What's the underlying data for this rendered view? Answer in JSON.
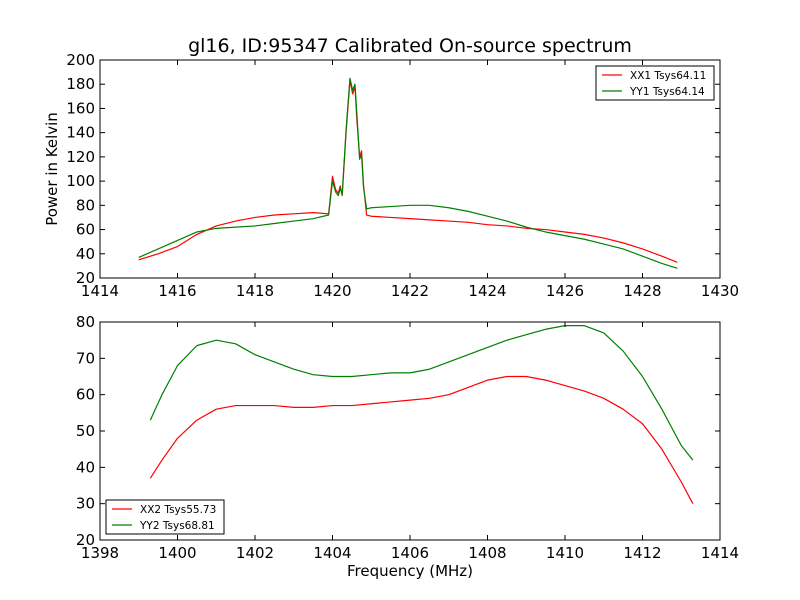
{
  "chart_data": [
    {
      "type": "line",
      "title": "gl16, ID:95347 Calibrated On-source spectrum",
      "xlabel": "",
      "ylabel": "Power in Kelvin",
      "xlim": [
        1414,
        1430
      ],
      "ylim": [
        20,
        200
      ],
      "xticks": [
        1414,
        1416,
        1418,
        1420,
        1422,
        1424,
        1426,
        1428,
        1430
      ],
      "yticks": [
        20,
        40,
        60,
        80,
        100,
        120,
        140,
        160,
        180,
        200
      ],
      "legend_position": "top-right",
      "series": [
        {
          "name": "XX1 Tsys64.11",
          "color": "#ff0000",
          "points": [
            [
              1415.0,
              35
            ],
            [
              1415.5,
              40
            ],
            [
              1416.0,
              46
            ],
            [
              1416.5,
              56
            ],
            [
              1417.0,
              63
            ],
            [
              1417.5,
              67
            ],
            [
              1418.0,
              70
            ],
            [
              1418.5,
              72
            ],
            [
              1419.0,
              73
            ],
            [
              1419.5,
              74
            ],
            [
              1419.9,
              73
            ],
            [
              1420.0,
              104
            ],
            [
              1420.08,
              93
            ],
            [
              1420.15,
              90
            ],
            [
              1420.2,
              96
            ],
            [
              1420.25,
              88
            ],
            [
              1420.35,
              140
            ],
            [
              1420.45,
              183
            ],
            [
              1420.52,
              172
            ],
            [
              1420.58,
              178
            ],
            [
              1420.63,
              150
            ],
            [
              1420.7,
              120
            ],
            [
              1420.75,
              125
            ],
            [
              1420.8,
              97
            ],
            [
              1420.88,
              72
            ],
            [
              1421.0,
              71
            ],
            [
              1421.5,
              70
            ],
            [
              1422.0,
              69
            ],
            [
              1422.5,
              68
            ],
            [
              1423.0,
              67
            ],
            [
              1423.5,
              66
            ],
            [
              1424.0,
              64
            ],
            [
              1424.5,
              63
            ],
            [
              1425.0,
              61
            ],
            [
              1425.5,
              60
            ],
            [
              1426.0,
              58
            ],
            [
              1426.5,
              56
            ],
            [
              1427.0,
              53
            ],
            [
              1427.5,
              49
            ],
            [
              1428.0,
              44
            ],
            [
              1428.5,
              38
            ],
            [
              1428.9,
              33
            ]
          ]
        },
        {
          "name": "YY1 Tsys64.14",
          "color": "#008000",
          "points": [
            [
              1415.0,
              37
            ],
            [
              1415.5,
              44
            ],
            [
              1416.0,
              51
            ],
            [
              1416.5,
              58
            ],
            [
              1417.0,
              61
            ],
            [
              1417.5,
              62
            ],
            [
              1418.0,
              63
            ],
            [
              1418.5,
              65
            ],
            [
              1419.0,
              67
            ],
            [
              1419.5,
              69
            ],
            [
              1419.9,
              72
            ],
            [
              1420.0,
              100
            ],
            [
              1420.08,
              91
            ],
            [
              1420.15,
              88
            ],
            [
              1420.2,
              94
            ],
            [
              1420.25,
              89
            ],
            [
              1420.35,
              142
            ],
            [
              1420.45,
              185
            ],
            [
              1420.52,
              175
            ],
            [
              1420.58,
              180
            ],
            [
              1420.63,
              155
            ],
            [
              1420.7,
              118
            ],
            [
              1420.75,
              122
            ],
            [
              1420.8,
              95
            ],
            [
              1420.88,
              77
            ],
            [
              1421.0,
              78
            ],
            [
              1421.5,
              79
            ],
            [
              1422.0,
              80
            ],
            [
              1422.5,
              80
            ],
            [
              1423.0,
              78
            ],
            [
              1423.5,
              75
            ],
            [
              1424.0,
              71
            ],
            [
              1424.5,
              67
            ],
            [
              1425.0,
              62
            ],
            [
              1425.5,
              58
            ],
            [
              1426.0,
              55
            ],
            [
              1426.5,
              52
            ],
            [
              1427.0,
              48
            ],
            [
              1427.5,
              44
            ],
            [
              1428.0,
              38
            ],
            [
              1428.5,
              32
            ],
            [
              1428.9,
              28
            ]
          ]
        }
      ]
    },
    {
      "type": "line",
      "title": "",
      "xlabel": "Frequency (MHz)",
      "ylabel": "",
      "xlim": [
        1398,
        1414
      ],
      "ylim": [
        20,
        80
      ],
      "xticks": [
        1398,
        1400,
        1402,
        1404,
        1406,
        1408,
        1410,
        1412,
        1414
      ],
      "yticks": [
        20,
        30,
        40,
        50,
        60,
        70,
        80
      ],
      "legend_position": "lower-left",
      "series": [
        {
          "name": "XX2 Tsys55.73",
          "color": "#ff0000",
          "points": [
            [
              1399.3,
              37
            ],
            [
              1399.6,
              42
            ],
            [
              1400.0,
              48
            ],
            [
              1400.5,
              53
            ],
            [
              1401.0,
              56
            ],
            [
              1401.5,
              57
            ],
            [
              1402.0,
              57
            ],
            [
              1402.5,
              57
            ],
            [
              1403.0,
              56.5
            ],
            [
              1403.5,
              56.5
            ],
            [
              1404.0,
              57
            ],
            [
              1404.5,
              57
            ],
            [
              1405.0,
              57.5
            ],
            [
              1405.5,
              58
            ],
            [
              1406.0,
              58.5
            ],
            [
              1406.5,
              59
            ],
            [
              1407.0,
              60
            ],
            [
              1407.5,
              62
            ],
            [
              1408.0,
              64
            ],
            [
              1408.5,
              65
            ],
            [
              1409.0,
              65
            ],
            [
              1409.5,
              64
            ],
            [
              1410.0,
              62.5
            ],
            [
              1410.5,
              61
            ],
            [
              1411.0,
              59
            ],
            [
              1411.5,
              56
            ],
            [
              1412.0,
              52
            ],
            [
              1412.5,
              45
            ],
            [
              1413.0,
              36
            ],
            [
              1413.3,
              30
            ]
          ]
        },
        {
          "name": "YY2 Tsys68.81",
          "color": "#008000",
          "points": [
            [
              1399.3,
              53
            ],
            [
              1399.6,
              60
            ],
            [
              1400.0,
              68
            ],
            [
              1400.5,
              73.5
            ],
            [
              1401.0,
              75
            ],
            [
              1401.5,
              74
            ],
            [
              1402.0,
              71
            ],
            [
              1402.5,
              69
            ],
            [
              1403.0,
              67
            ],
            [
              1403.5,
              65.5
            ],
            [
              1404.0,
              65
            ],
            [
              1404.5,
              65
            ],
            [
              1405.0,
              65.5
            ],
            [
              1405.5,
              66
            ],
            [
              1406.0,
              66
            ],
            [
              1406.5,
              67
            ],
            [
              1407.0,
              69
            ],
            [
              1407.5,
              71
            ],
            [
              1408.0,
              73
            ],
            [
              1408.5,
              75
            ],
            [
              1409.0,
              76.5
            ],
            [
              1409.5,
              78
            ],
            [
              1410.0,
              79
            ],
            [
              1410.5,
              79
            ],
            [
              1411.0,
              77
            ],
            [
              1411.5,
              72
            ],
            [
              1412.0,
              65
            ],
            [
              1412.5,
              56
            ],
            [
              1413.0,
              46
            ],
            [
              1413.3,
              42
            ]
          ]
        }
      ]
    }
  ]
}
